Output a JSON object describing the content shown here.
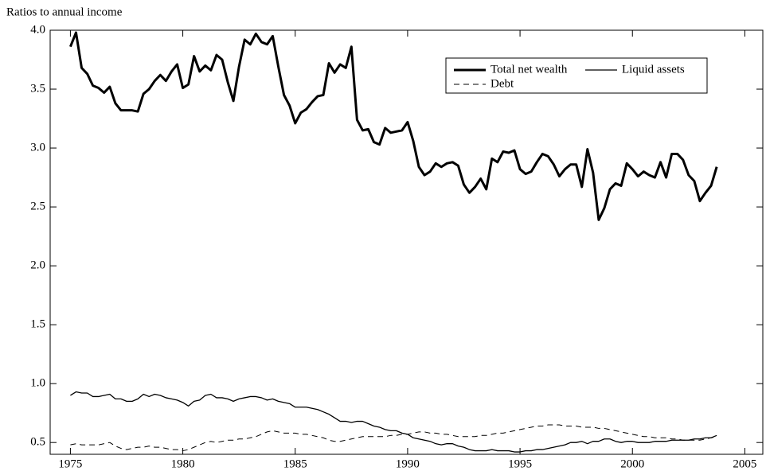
{
  "chart_data": {
    "type": "line",
    "y_label": "Ratios to annual income",
    "xlim": [
      1974.1,
      2005.8
    ],
    "ylim": [
      0.4,
      4.0
    ],
    "xticks": [
      1975,
      1980,
      1985,
      1990,
      1995,
      2000,
      2005
    ],
    "yticks": [
      0.5,
      {
        "value": 1.0,
        "label": "1.0"
      },
      1.5,
      {
        "value": 2.0,
        "label": "2.0"
      },
      2.5,
      {
        "value": 3.0,
        "label": "3.0"
      },
      3.5,
      {
        "value": 4.0,
        "label": "4.0"
      }
    ],
    "legend": "upper right",
    "x": [
      1975,
      1975.25,
      1975.5,
      1975.75,
      1976,
      1976.25,
      1976.5,
      1976.75,
      1977,
      1977.25,
      1977.5,
      1977.75,
      1978,
      1978.25,
      1978.5,
      1978.75,
      1979,
      1979.25,
      1979.5,
      1979.75,
      1980,
      1980.25,
      1980.5,
      1980.75,
      1981,
      1981.25,
      1981.5,
      1981.75,
      1982,
      1982.25,
      1982.5,
      1982.75,
      1983,
      1983.25,
      1983.5,
      1983.75,
      1984,
      1984.25,
      1984.5,
      1984.75,
      1985,
      1985.25,
      1985.5,
      1985.75,
      1986,
      1986.25,
      1986.5,
      1986.75,
      1987,
      1987.25,
      1987.5,
      1987.75,
      1988,
      1988.25,
      1988.5,
      1988.75,
      1989,
      1989.25,
      1989.5,
      1989.75,
      1990,
      1990.25,
      1990.5,
      1990.75,
      1991,
      1991.25,
      1991.5,
      1991.75,
      1992,
      1992.25,
      1992.5,
      1992.75,
      1993,
      1993.25,
      1993.5,
      1993.75,
      1994,
      1994.25,
      1994.5,
      1994.75,
      1995,
      1995.25,
      1995.5,
      1995.75,
      1996,
      1996.25,
      1996.5,
      1996.75,
      1997,
      1997.25,
      1997.5,
      1997.75,
      1998,
      1998.25,
      1998.5,
      1998.75,
      1999,
      1999.25,
      1999.5,
      1999.75,
      2000,
      2000.25,
      2000.5,
      2000.75,
      2001,
      2001.25,
      2001.5,
      2001.75,
      2002,
      2002.25,
      2002.5,
      2002.75,
      2003,
      2003.25,
      2003.5,
      2003.75
    ],
    "series": [
      {
        "name": "Total net wealth",
        "color": "#000000",
        "linewidth": 3,
        "style": "solid",
        "values": [
          3.86,
          3.98,
          3.68,
          3.63,
          3.53,
          3.51,
          3.47,
          3.52,
          3.38,
          3.32,
          3.32,
          3.32,
          3.31,
          3.46,
          3.5,
          3.57,
          3.62,
          3.57,
          3.65,
          3.71,
          3.51,
          3.54,
          3.78,
          3.65,
          3.7,
          3.66,
          3.79,
          3.75,
          3.56,
          3.4,
          3.69,
          3.92,
          3.88,
          3.97,
          3.9,
          3.88,
          3.95,
          3.69,
          3.45,
          3.36,
          3.21,
          3.3,
          3.33,
          3.39,
          3.44,
          3.45,
          3.72,
          3.64,
          3.71,
          3.68,
          3.86,
          3.24,
          3.15,
          3.16,
          3.05,
          3.03,
          3.17,
          3.13,
          3.14,
          3.15,
          3.22,
          3.06,
          2.84,
          2.77,
          2.8,
          2.87,
          2.84,
          2.87,
          2.88,
          2.85,
          2.69,
          2.62,
          2.67,
          2.74,
          2.65,
          2.91,
          2.88,
          2.97,
          2.96,
          2.98,
          2.82,
          2.78,
          2.8,
          2.88,
          2.95,
          2.93,
          2.86,
          2.76,
          2.82,
          2.86,
          2.86,
          2.67,
          2.99,
          2.79,
          2.39,
          2.49,
          2.65,
          2.7,
          2.68,
          2.87,
          2.82,
          2.76,
          2.8,
          2.77,
          2.75,
          2.88,
          2.75,
          2.95,
          2.95,
          2.9,
          2.77,
          2.72,
          2.55,
          2.62,
          2.68,
          2.84
        ]
      },
      {
        "name": "Liquid assets",
        "color": "#000000",
        "linewidth": 1.3,
        "style": "solid",
        "values": [
          0.9,
          0.93,
          0.92,
          0.92,
          0.89,
          0.89,
          0.9,
          0.91,
          0.87,
          0.87,
          0.85,
          0.85,
          0.87,
          0.91,
          0.89,
          0.91,
          0.9,
          0.88,
          0.87,
          0.86,
          0.84,
          0.81,
          0.85,
          0.86,
          0.9,
          0.91,
          0.88,
          0.88,
          0.87,
          0.85,
          0.87,
          0.88,
          0.89,
          0.89,
          0.88,
          0.86,
          0.87,
          0.85,
          0.84,
          0.83,
          0.8,
          0.8,
          0.8,
          0.79,
          0.78,
          0.76,
          0.74,
          0.71,
          0.68,
          0.68,
          0.67,
          0.68,
          0.68,
          0.66,
          0.64,
          0.63,
          0.61,
          0.6,
          0.6,
          0.58,
          0.57,
          0.54,
          0.53,
          0.52,
          0.51,
          0.49,
          0.48,
          0.49,
          0.49,
          0.47,
          0.46,
          0.44,
          0.43,
          0.43,
          0.43,
          0.44,
          0.43,
          0.43,
          0.43,
          0.42,
          0.42,
          0.43,
          0.43,
          0.44,
          0.44,
          0.45,
          0.46,
          0.47,
          0.48,
          0.5,
          0.5,
          0.51,
          0.49,
          0.51,
          0.51,
          0.53,
          0.53,
          0.51,
          0.5,
          0.51,
          0.51,
          0.5,
          0.5,
          0.5,
          0.51,
          0.51,
          0.51,
          0.52,
          0.52,
          0.52,
          0.52,
          0.53,
          0.53,
          0.54,
          0.54,
          0.56
        ]
      },
      {
        "name": "Debt",
        "color": "#000000",
        "linewidth": 1,
        "style": "dashed",
        "values": [
          0.48,
          0.49,
          0.48,
          0.48,
          0.48,
          0.48,
          0.49,
          0.5,
          0.47,
          0.45,
          0.44,
          0.45,
          0.46,
          0.46,
          0.47,
          0.46,
          0.46,
          0.45,
          0.44,
          0.44,
          0.43,
          0.44,
          0.46,
          0.48,
          0.5,
          0.51,
          0.5,
          0.51,
          0.52,
          0.52,
          0.53,
          0.53,
          0.54,
          0.55,
          0.57,
          0.59,
          0.6,
          0.59,
          0.58,
          0.58,
          0.58,
          0.57,
          0.57,
          0.56,
          0.55,
          0.54,
          0.52,
          0.51,
          0.51,
          0.52,
          0.53,
          0.54,
          0.55,
          0.55,
          0.55,
          0.55,
          0.55,
          0.56,
          0.56,
          0.57,
          0.57,
          0.58,
          0.59,
          0.59,
          0.58,
          0.58,
          0.57,
          0.57,
          0.56,
          0.55,
          0.55,
          0.55,
          0.55,
          0.56,
          0.56,
          0.57,
          0.58,
          0.58,
          0.59,
          0.6,
          0.61,
          0.62,
          0.63,
          0.64,
          0.64,
          0.65,
          0.65,
          0.65,
          0.64,
          0.64,
          0.64,
          0.63,
          0.63,
          0.63,
          0.62,
          0.62,
          0.61,
          0.6,
          0.59,
          0.58,
          0.57,
          0.56,
          0.55,
          0.55,
          0.54,
          0.54,
          0.54,
          0.53,
          0.53,
          0.52,
          0.52,
          0.52,
          0.52,
          0.53,
          0.54,
          0.55
        ]
      }
    ]
  }
}
